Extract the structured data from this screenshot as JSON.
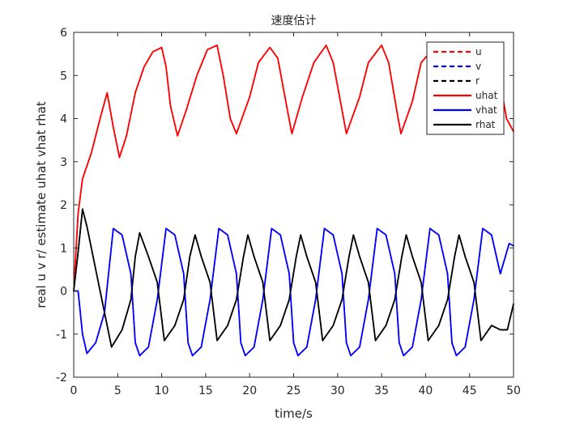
{
  "chart_data": {
    "type": "line",
    "title": "速度估计",
    "xlabel": "time/s",
    "ylabel": "real u v r/ estimate uhat vhat rhat",
    "xlim": [
      0,
      50
    ],
    "ylim": [
      -2,
      6
    ],
    "xticks": [
      0,
      5,
      10,
      15,
      20,
      25,
      30,
      35,
      40,
      45,
      50
    ],
    "yticks": [
      -2,
      -1,
      0,
      1,
      2,
      3,
      4,
      5,
      6
    ],
    "grid": false,
    "legend_location": "top-right",
    "series": [
      {
        "name": "u",
        "color": "#ff0000",
        "style": "dashed",
        "x": [
          0,
          0.5,
          1,
          1.5,
          2,
          3,
          3.8,
          4.5,
          5.2,
          6,
          7,
          8,
          9,
          10,
          10.5,
          11,
          11.8,
          12.8,
          14,
          15.2,
          16.3,
          17,
          17.8,
          18.5,
          20,
          21,
          22.3,
          23.2,
          24.2,
          24.8,
          26,
          27.3,
          28.7,
          29.5,
          30.5,
          31,
          32.5,
          33.5,
          35,
          35.8,
          36.8,
          37.2,
          38.5,
          39.5,
          41,
          42,
          43,
          43.5,
          45,
          46,
          47.2,
          48.2,
          49.2,
          50
        ],
        "y": [
          0,
          1.8,
          2.6,
          2.9,
          3.2,
          4.0,
          4.6,
          3.8,
          3.1,
          3.6,
          4.6,
          5.2,
          5.55,
          5.65,
          5.2,
          4.3,
          3.6,
          4.2,
          5.0,
          5.6,
          5.7,
          5.0,
          4.0,
          3.65,
          4.5,
          5.3,
          5.65,
          5.4,
          4.3,
          3.65,
          4.5,
          5.3,
          5.7,
          5.3,
          4.2,
          3.65,
          4.5,
          5.3,
          5.7,
          5.3,
          4.1,
          3.65,
          4.4,
          5.3,
          5.65,
          5.3,
          4.4,
          3.65,
          4.4,
          5.3,
          5.65,
          5.2,
          4.0,
          3.7
        ]
      },
      {
        "name": "v",
        "color": "#0000ff",
        "style": "dashed",
        "x": [
          0,
          0.5,
          1,
          1.5,
          2.5,
          3.5,
          4.5,
          5.5,
          6.5,
          7,
          7.5,
          8.5,
          9.5,
          10.5,
          11.5,
          12.5,
          13,
          13.5,
          14.5,
          15.5,
          16.5,
          17.5,
          18.5,
          19,
          19.5,
          20.5,
          21.5,
          22.5,
          23.5,
          24.5,
          25,
          25.5,
          26.5,
          27.5,
          28.5,
          29.5,
          30.5,
          31,
          31.5,
          32.5,
          33.5,
          34.5,
          35.5,
          36.5,
          37,
          37.5,
          38.5,
          39.5,
          40.5,
          41.5,
          42.5,
          43,
          43.5,
          44.5,
          45.5,
          46.5,
          47.5,
          48.5,
          49.5,
          50
        ],
        "y": [
          0,
          0.0,
          -1.0,
          -1.45,
          -1.2,
          -0.5,
          1.45,
          1.3,
          0.4,
          -1.2,
          -1.5,
          -1.3,
          -0.2,
          1.45,
          1.3,
          0.4,
          -1.2,
          -1.5,
          -1.3,
          -0.2,
          1.45,
          1.3,
          0.4,
          -1.2,
          -1.5,
          -1.3,
          -0.2,
          1.45,
          1.3,
          0.4,
          -1.2,
          -1.5,
          -1.3,
          -0.2,
          1.45,
          1.3,
          0.4,
          -1.2,
          -1.5,
          -1.3,
          -0.2,
          1.45,
          1.3,
          0.4,
          -1.2,
          -1.5,
          -1.3,
          -0.2,
          1.45,
          1.3,
          0.4,
          -1.2,
          -1.5,
          -1.3,
          -0.2,
          1.45,
          1.3,
          0.4,
          1.1,
          1.05
        ]
      },
      {
        "name": "r",
        "color": "#000000",
        "style": "dashed",
        "x": [
          0,
          0.5,
          1,
          1.5,
          2.5,
          3.5,
          4.3,
          5.5,
          6.5,
          7,
          7.5,
          8.5,
          9.5,
          10.3,
          11.5,
          12.5,
          13.2,
          13.8,
          14.5,
          15.5,
          16.3,
          17.5,
          18.5,
          19.3,
          19.8,
          20.5,
          21.5,
          22.3,
          23.5,
          24.5,
          25.3,
          25.8,
          26.5,
          27.5,
          28.3,
          29.5,
          30.5,
          31.3,
          31.8,
          32.5,
          33.5,
          34.3,
          35.5,
          36.5,
          37.3,
          37.8,
          38.5,
          39.5,
          40.3,
          41.5,
          42.5,
          43.3,
          43.8,
          44.5,
          45.5,
          46.3,
          47.5,
          48.5,
          49.3,
          50
        ],
        "y": [
          0,
          0.9,
          1.9,
          1.5,
          0.5,
          -0.5,
          -1.3,
          -0.9,
          -0.2,
          0.8,
          1.35,
          0.8,
          0.2,
          -1.15,
          -0.8,
          -0.2,
          0.8,
          1.3,
          0.8,
          0.2,
          -1.15,
          -0.8,
          -0.2,
          0.8,
          1.3,
          0.8,
          0.2,
          -1.15,
          -0.8,
          -0.2,
          0.8,
          1.3,
          0.8,
          0.2,
          -1.15,
          -0.8,
          -0.2,
          0.8,
          1.3,
          0.8,
          0.2,
          -1.15,
          -0.8,
          -0.2,
          0.8,
          1.3,
          0.8,
          0.2,
          -1.15,
          -0.8,
          -0.2,
          0.8,
          1.3,
          0.8,
          0.2,
          -1.15,
          -0.8,
          -0.9,
          -0.9,
          -0.3
        ]
      },
      {
        "name": "uhat",
        "color": "#ff0000",
        "style": "solid",
        "x": [
          0,
          0.5,
          1,
          1.5,
          2,
          3,
          3.8,
          4.5,
          5.2,
          6,
          7,
          8,
          9,
          10,
          10.5,
          11,
          11.8,
          12.8,
          14,
          15.2,
          16.3,
          17,
          17.8,
          18.5,
          20,
          21,
          22.3,
          23.2,
          24.2,
          24.8,
          26,
          27.3,
          28.7,
          29.5,
          30.5,
          31,
          32.5,
          33.5,
          35,
          35.8,
          36.8,
          37.2,
          38.5,
          39.5,
          41,
          42,
          43,
          43.5,
          45,
          46,
          47.2,
          48.2,
          49.2,
          50
        ],
        "y": [
          0,
          1.8,
          2.6,
          2.9,
          3.2,
          4.0,
          4.6,
          3.8,
          3.1,
          3.6,
          4.6,
          5.2,
          5.55,
          5.65,
          5.2,
          4.3,
          3.6,
          4.2,
          5.0,
          5.6,
          5.7,
          5.0,
          4.0,
          3.65,
          4.5,
          5.3,
          5.65,
          5.4,
          4.3,
          3.65,
          4.5,
          5.3,
          5.7,
          5.3,
          4.2,
          3.65,
          4.5,
          5.3,
          5.7,
          5.3,
          4.1,
          3.65,
          4.4,
          5.3,
          5.65,
          5.3,
          4.4,
          3.65,
          4.4,
          5.3,
          5.65,
          5.2,
          4.0,
          3.7
        ]
      },
      {
        "name": "vhat",
        "color": "#0000ff",
        "style": "solid",
        "x": [
          0,
          0.5,
          1,
          1.5,
          2.5,
          3.5,
          4.5,
          5.5,
          6.5,
          7,
          7.5,
          8.5,
          9.5,
          10.5,
          11.5,
          12.5,
          13,
          13.5,
          14.5,
          15.5,
          16.5,
          17.5,
          18.5,
          19,
          19.5,
          20.5,
          21.5,
          22.5,
          23.5,
          24.5,
          25,
          25.5,
          26.5,
          27.5,
          28.5,
          29.5,
          30.5,
          31,
          31.5,
          32.5,
          33.5,
          34.5,
          35.5,
          36.5,
          37,
          37.5,
          38.5,
          39.5,
          40.5,
          41.5,
          42.5,
          43,
          43.5,
          44.5,
          45.5,
          46.5,
          47.5,
          48.5,
          49.5,
          50
        ],
        "y": [
          0,
          0.0,
          -1.0,
          -1.45,
          -1.2,
          -0.5,
          1.45,
          1.3,
          0.4,
          -1.2,
          -1.5,
          -1.3,
          -0.2,
          1.45,
          1.3,
          0.4,
          -1.2,
          -1.5,
          -1.3,
          -0.2,
          1.45,
          1.3,
          0.4,
          -1.2,
          -1.5,
          -1.3,
          -0.2,
          1.45,
          1.3,
          0.4,
          -1.2,
          -1.5,
          -1.3,
          -0.2,
          1.45,
          1.3,
          0.4,
          -1.2,
          -1.5,
          -1.3,
          -0.2,
          1.45,
          1.3,
          0.4,
          -1.2,
          -1.5,
          -1.3,
          -0.2,
          1.45,
          1.3,
          0.4,
          -1.2,
          -1.5,
          -1.3,
          -0.2,
          1.45,
          1.3,
          0.4,
          1.1,
          1.05
        ]
      },
      {
        "name": "rhat",
        "color": "#000000",
        "style": "solid",
        "x": [
          0,
          0.5,
          1,
          1.5,
          2.5,
          3.5,
          4.3,
          5.5,
          6.5,
          7,
          7.5,
          8.5,
          9.5,
          10.3,
          11.5,
          12.5,
          13.2,
          13.8,
          14.5,
          15.5,
          16.3,
          17.5,
          18.5,
          19.3,
          19.8,
          20.5,
          21.5,
          22.3,
          23.5,
          24.5,
          25.3,
          25.8,
          26.5,
          27.5,
          28.3,
          29.5,
          30.5,
          31.3,
          31.8,
          32.5,
          33.5,
          34.3,
          35.5,
          36.5,
          37.3,
          37.8,
          38.5,
          39.5,
          40.3,
          41.5,
          42.5,
          43.3,
          43.8,
          44.5,
          45.5,
          46.3,
          47.5,
          48.5,
          49.3,
          50
        ],
        "y": [
          0,
          0.9,
          1.9,
          1.5,
          0.5,
          -0.5,
          -1.3,
          -0.9,
          -0.2,
          0.8,
          1.35,
          0.8,
          0.2,
          -1.15,
          -0.8,
          -0.2,
          0.8,
          1.3,
          0.8,
          0.2,
          -1.15,
          -0.8,
          -0.2,
          0.8,
          1.3,
          0.8,
          0.2,
          -1.15,
          -0.8,
          -0.2,
          0.8,
          1.3,
          0.8,
          0.2,
          -1.15,
          -0.8,
          -0.2,
          0.8,
          1.3,
          0.8,
          0.2,
          -1.15,
          -0.8,
          -0.2,
          0.8,
          1.3,
          0.8,
          0.2,
          -1.15,
          -0.8,
          -0.2,
          0.8,
          1.3,
          0.8,
          0.2,
          -1.15,
          -0.8,
          -0.9,
          -0.9,
          -0.3
        ]
      }
    ]
  }
}
